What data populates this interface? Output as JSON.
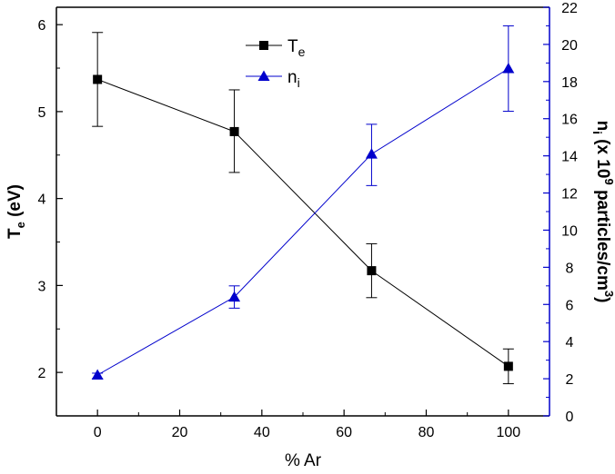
{
  "chart_data": {
    "type": "line",
    "title": "",
    "x": [
      0,
      33.3,
      66.7,
      100
    ],
    "xlabel": "% Ar",
    "xlim": [
      -10,
      110
    ],
    "xticks": [
      0,
      20,
      40,
      60,
      80,
      100
    ],
    "y_left": {
      "label": "T",
      "label_sub": "e",
      "label_suffix": " (eV)",
      "lim": [
        1.5,
        6.2
      ],
      "ticks": [
        2,
        3,
        4,
        5,
        6
      ]
    },
    "y_right": {
      "label_prefix": "n",
      "label_sub": "i",
      "label_mid": " (x 10",
      "label_sup": "9",
      "label_suffix": " particles/cm",
      "label_sup2": "3",
      "label_close": ")",
      "lim": [
        0,
        22
      ],
      "ticks": [
        0,
        2,
        4,
        6,
        8,
        10,
        12,
        14,
        16,
        18,
        20,
        22
      ],
      "color": "#0000cc"
    },
    "series": [
      {
        "name": "T",
        "name_sub": "e",
        "axis": "left",
        "color": "#000000",
        "marker": "square",
        "values": [
          5.37,
          4.77,
          3.17,
          2.07
        ],
        "err_low": [
          4.83,
          4.3,
          2.86,
          1.87
        ],
        "err_high": [
          5.91,
          5.25,
          3.48,
          2.27
        ]
      },
      {
        "name": "n",
        "name_sub": "i",
        "axis": "right",
        "color": "#0000cc",
        "marker": "triangle",
        "values": [
          2.2,
          6.4,
          14.1,
          18.7
        ],
        "err_low": [
          2.0,
          5.8,
          12.4,
          16.4
        ],
        "err_high": [
          2.3,
          7.0,
          15.7,
          21.0
        ]
      }
    ],
    "legend_position": "top-center"
  }
}
